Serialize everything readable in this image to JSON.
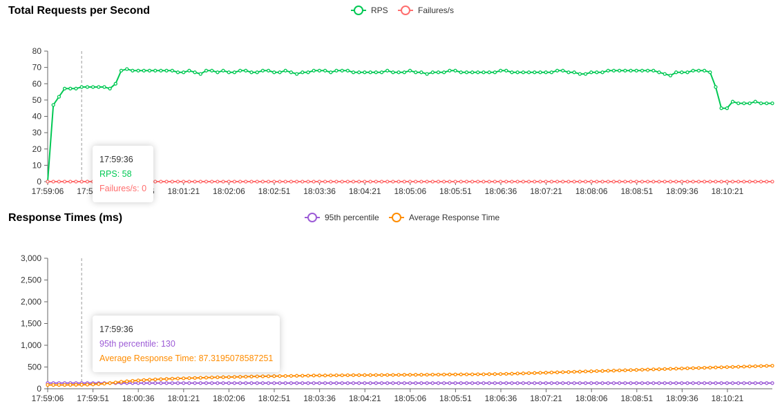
{
  "chart_data": [
    {
      "type": "line",
      "title": "Total Requests per Second",
      "ylim": [
        0,
        80
      ],
      "yticks": [
        0,
        10,
        20,
        30,
        40,
        50,
        60,
        70,
        80
      ],
      "xtick_labels": [
        "17:59:06",
        "17:59:51",
        "18:00:36",
        "18:01:21",
        "18:02:06",
        "18:02:51",
        "18:03:36",
        "18:04:21",
        "18:05:06",
        "18:05:51",
        "18:06:36",
        "18:07:21",
        "18:08:06",
        "18:08:51",
        "18:09:36",
        "18:10:21"
      ],
      "legend_position": "top-center",
      "grid": false,
      "series": [
        {
          "name": "RPS",
          "color": "#00c853",
          "values": [
            0,
            47,
            52,
            57,
            57,
            57,
            58,
            58,
            58,
            58,
            58,
            57,
            60,
            68,
            69,
            68,
            68,
            68,
            68,
            68,
            68,
            68,
            68,
            67,
            67,
            68,
            67,
            66,
            68,
            68,
            67,
            68,
            67,
            67,
            68,
            68,
            67,
            67,
            68,
            68,
            67,
            67,
            68,
            67,
            66,
            67,
            67,
            68,
            68,
            68,
            67,
            68,
            68,
            68,
            67,
            67,
            67,
            67,
            67,
            67,
            68,
            67,
            67,
            67,
            68,
            67,
            67,
            66,
            67,
            67,
            67,
            68,
            68,
            67,
            67,
            67,
            67,
            67,
            67,
            67,
            68,
            68,
            67,
            67,
            67,
            67,
            67,
            67,
            67,
            67,
            68,
            68,
            67,
            67,
            66,
            66,
            67,
            67,
            67,
            68,
            68,
            68,
            68,
            68,
            68,
            68,
            68,
            68,
            67,
            66,
            65,
            67,
            67,
            67,
            68,
            68,
            68,
            67,
            58,
            45,
            45,
            49,
            48,
            48,
            48,
            49,
            48,
            48,
            48
          ]
        },
        {
          "name": "Failures/s",
          "color": "#ff6d6d",
          "values": [
            0,
            0,
            0,
            0,
            0,
            0,
            0,
            0,
            0,
            0,
            0,
            0,
            0,
            0,
            0,
            0,
            0,
            0,
            0,
            0,
            0,
            0,
            0,
            0,
            0,
            0,
            0,
            0,
            0,
            0,
            0,
            0,
            0,
            0,
            0,
            0,
            0,
            0,
            0,
            0,
            0,
            0,
            0,
            0,
            0,
            0,
            0,
            0,
            0,
            0,
            0,
            0,
            0,
            0,
            0,
            0,
            0,
            0,
            0,
            0,
            0,
            0,
            0,
            0,
            0,
            0,
            0,
            0,
            0,
            0,
            0,
            0,
            0,
            0,
            0,
            0,
            0,
            0,
            0,
            0,
            0,
            0,
            0,
            0,
            0,
            0,
            0,
            0,
            0,
            0,
            0,
            0,
            0,
            0,
            0,
            0,
            0,
            0,
            0,
            0,
            0,
            0,
            0,
            0,
            0,
            0,
            0,
            0,
            0,
            0,
            0,
            0,
            0,
            0,
            0,
            0,
            0,
            0,
            0,
            0,
            0,
            0,
            0,
            0,
            0,
            0,
            0,
            0,
            0
          ]
        }
      ]
    },
    {
      "type": "line",
      "title": "Response Times (ms)",
      "ylim": [
        0,
        3000
      ],
      "yticks": [
        0,
        500,
        1000,
        1500,
        2000,
        2500,
        3000
      ],
      "ytick_labels": [
        "0",
        "500",
        "1,000",
        "1,500",
        "2,000",
        "2,500",
        "3,000"
      ],
      "xtick_labels": [
        "17:59:06",
        "17:59:51",
        "18:00:36",
        "18:01:21",
        "18:02:06",
        "18:02:51",
        "18:03:36",
        "18:04:21",
        "18:05:06",
        "18:05:51",
        "18:06:36",
        "18:07:21",
        "18:08:06",
        "18:08:51",
        "18:09:36",
        "18:10:21"
      ],
      "legend_position": "top-center",
      "grid": false,
      "series": [
        {
          "name": "95th percentile",
          "color": "#9c5bd6",
          "values": [
            130,
            130,
            130,
            130,
            130,
            130,
            130,
            130,
            130,
            130,
            130,
            130,
            130,
            130,
            130,
            130,
            130,
            130,
            130,
            130,
            130,
            130,
            130,
            130,
            130,
            130,
            130,
            130,
            130,
            130,
            130,
            130,
            130,
            130,
            130,
            130,
            130,
            130,
            130,
            130,
            130,
            130,
            130,
            130,
            130,
            130,
            130,
            130,
            130,
            130,
            130,
            130,
            130,
            130,
            130,
            130,
            130,
            130,
            130,
            130,
            130,
            130,
            130,
            130,
            130,
            130,
            130,
            130,
            130,
            130,
            130,
            130,
            130,
            130,
            130,
            130,
            130,
            130,
            130,
            130,
            130,
            130,
            130,
            130,
            130,
            130,
            130,
            130,
            130,
            130,
            130,
            130,
            130,
            130,
            130,
            130,
            130,
            130,
            130,
            130,
            130,
            130,
            130,
            130,
            130,
            130,
            130,
            130,
            130,
            130,
            130,
            130,
            130,
            130,
            130,
            130,
            130,
            130,
            130,
            130,
            130,
            130,
            130,
            130,
            130,
            130,
            130,
            130,
            130
          ]
        },
        {
          "name": "Average Response Time",
          "color": "#ff8c00",
          "values": [
            87,
            87,
            88,
            88,
            89,
            90,
            92,
            95,
            100,
            108,
            118,
            130,
            145,
            160,
            172,
            182,
            192,
            200,
            208,
            214,
            220,
            226,
            231,
            236,
            240,
            244,
            248,
            252,
            256,
            260,
            263,
            266,
            269,
            272,
            275,
            278,
            281,
            284,
            286,
            288,
            290,
            292,
            294,
            296,
            298,
            300,
            302,
            304,
            306,
            307,
            308,
            309,
            310,
            311,
            312,
            313,
            314,
            315,
            316,
            316,
            317,
            318,
            319,
            320,
            321,
            322,
            323,
            324,
            325,
            326,
            327,
            328,
            329,
            330,
            331,
            332,
            333,
            334,
            336,
            338,
            340,
            343,
            346,
            350,
            354,
            358,
            362,
            366,
            370,
            374,
            378,
            382,
            386,
            390,
            394,
            398,
            402,
            406,
            410,
            414,
            418,
            422,
            426,
            430,
            434,
            438,
            442,
            446,
            450,
            454,
            458,
            462,
            466,
            470,
            474,
            478,
            482,
            486,
            490,
            494,
            498,
            502,
            506,
            510,
            514,
            518,
            522,
            526,
            530
          ]
        }
      ]
    }
  ],
  "tooltips": [
    {
      "time": "17:59:36",
      "lines": [
        {
          "label": "RPS: 58",
          "color": "#00c853"
        },
        {
          "label": "Failures/s: 0",
          "color": "#ff6d6d"
        }
      ]
    },
    {
      "time": "17:59:36",
      "lines": [
        {
          "label": "95th percentile: 130",
          "color": "#9c5bd6"
        },
        {
          "label": "Average Response Time: 87.3195078587251",
          "color": "#ff8c00"
        }
      ]
    }
  ]
}
